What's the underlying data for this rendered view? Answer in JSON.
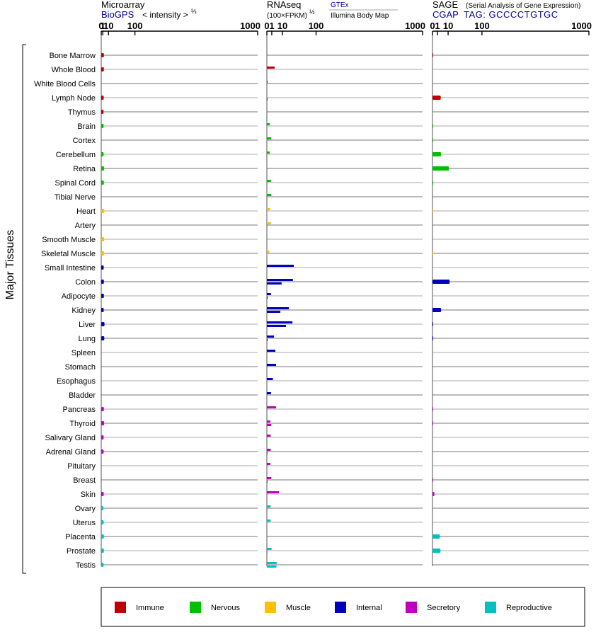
{
  "chart_data": {
    "type": "bar",
    "y_axis_title": "Major Tissues",
    "scale": {
      "ticks": [
        0,
        1,
        10,
        100,
        1000
      ],
      "tick_labels": [
        "0",
        "1",
        "10",
        "100",
        "1000"
      ],
      "range": [
        0,
        1000
      ]
    },
    "panels": [
      {
        "id": "microarray",
        "title": "Microarray",
        "source": "BioGPS",
        "unit": "< intensity >",
        "unit_exponent": "⅔"
      },
      {
        "id": "rnaseq",
        "title": "RNAseq",
        "unit": "(100×FPKM)",
        "unit_exponent": "½",
        "legend_primary": "GTEx",
        "legend_secondary": "Illumina Body Map"
      },
      {
        "id": "sage",
        "title": "SAGE",
        "title_note": "(Serial Analysis of Gene Expression)",
        "source": "CGAP",
        "tag": "TAG: GCCCCTGTGC"
      }
    ],
    "categories": [
      {
        "name": "Immune",
        "color": "#c00000"
      },
      {
        "name": "Nervous",
        "color": "#00c000"
      },
      {
        "name": "Muscle",
        "color": "#ffc000"
      },
      {
        "name": "Internal",
        "color": "#0000c0"
      },
      {
        "name": "Secretory",
        "color": "#c000c0"
      },
      {
        "name": "Reproductive",
        "color": "#00c0c0"
      }
    ],
    "tissues": [
      {
        "name": "Bone Marrow",
        "cat": 0,
        "microarray": 2.2,
        "gtex": null,
        "ibm": null,
        "sage": 0.02
      },
      {
        "name": "Whole Blood",
        "cat": 0,
        "microarray": 2.2,
        "gtex": 2.5,
        "ibm": null,
        "sage": null
      },
      {
        "name": "White Blood Cells",
        "cat": 0,
        "microarray": null,
        "gtex": 0.01,
        "ibm": null,
        "sage": null
      },
      {
        "name": "Lymph Node",
        "cat": 0,
        "microarray": 2.0,
        "gtex": null,
        "ibm": 0.01,
        "sage": 2.8
      },
      {
        "name": "Thymus",
        "cat": 0,
        "microarray": 1.8,
        "gtex": null,
        "ibm": null,
        "sage": null
      },
      {
        "name": "Brain",
        "cat": 1,
        "microarray": 1.9,
        "gtex": 0.35,
        "ibm": null,
        "sage": 0.01
      },
      {
        "name": "Cortex",
        "cat": 1,
        "microarray": null,
        "gtex": 0.8,
        "ibm": null,
        "sage": 0.01
      },
      {
        "name": "Cerebellum",
        "cat": 1,
        "microarray": 1.9,
        "gtex": 0.35,
        "ibm": null,
        "sage": 3.0
      },
      {
        "name": "Retina",
        "cat": 1,
        "microarray": 2.5,
        "gtex": null,
        "ibm": null,
        "sage": 11.0
      },
      {
        "name": "Spinal Cord",
        "cat": 1,
        "microarray": 2.2,
        "gtex": 0.7,
        "ibm": null,
        "sage": 0.01
      },
      {
        "name": "Tibial Nerve",
        "cat": 1,
        "microarray": null,
        "gtex": 0.8,
        "ibm": null,
        "sage": null
      },
      {
        "name": "Heart",
        "cat": 2,
        "microarray": 2.7,
        "gtex": 0.45,
        "ibm": 0.01,
        "sage": 0.01
      },
      {
        "name": "Artery",
        "cat": 2,
        "microarray": null,
        "gtex": 0.7,
        "ibm": null,
        "sage": null
      },
      {
        "name": "Smooth Muscle",
        "cat": 2,
        "microarray": 2.5,
        "gtex": null,
        "ibm": null,
        "sage": null
      },
      {
        "name": "Skeletal Muscle",
        "cat": 2,
        "microarray": 2.5,
        "gtex": 0.25,
        "ibm": 0.01,
        "sage": 0.01
      },
      {
        "name": "Small Intestine",
        "cat": 3,
        "microarray": 2.0,
        "gtex": 30.0,
        "ibm": null,
        "sage": null
      },
      {
        "name": "Colon",
        "cat": 3,
        "microarray": 2.2,
        "gtex": 28.0,
        "ibm": 9.0,
        "sage": 12.0
      },
      {
        "name": "Adipocyte",
        "cat": 3,
        "microarray": 2.2,
        "gtex": 0.7,
        "ibm": 0.01,
        "sage": null
      },
      {
        "name": "Kidney",
        "cat": 3,
        "microarray": 2.0,
        "gtex": 20.0,
        "ibm": 7.5,
        "sage": 3.0
      },
      {
        "name": "Liver",
        "cat": 3,
        "microarray": 3.0,
        "gtex": 27.0,
        "ibm": 15.0,
        "sage": 0.02
      },
      {
        "name": "Lung",
        "cat": 3,
        "microarray": 2.7,
        "gtex": 2.1,
        "ibm": 0.01,
        "sage": 0.02
      },
      {
        "name": "Spleen",
        "cat": 3,
        "microarray": null,
        "gtex": 3.0,
        "ibm": null,
        "sage": null
      },
      {
        "name": "Stomach",
        "cat": 3,
        "microarray": null,
        "gtex": 3.5,
        "ibm": null,
        "sage": null
      },
      {
        "name": "Esophagus",
        "cat": 3,
        "microarray": null,
        "gtex": 1.5,
        "ibm": null,
        "sage": null
      },
      {
        "name": "Bladder",
        "cat": 3,
        "microarray": null,
        "gtex": 0.7,
        "ibm": null,
        "sage": null
      },
      {
        "name": "Pancreas",
        "cat": 4,
        "microarray": 2.2,
        "gtex": 3.5,
        "ibm": null,
        "sage": 0.02
      },
      {
        "name": "Thyroid",
        "cat": 4,
        "microarray": 2.5,
        "gtex": 0.5,
        "ibm": 0.8,
        "sage": 0.02
      },
      {
        "name": "Salivary Gland",
        "cat": 4,
        "microarray": 1.9,
        "gtex": 0.6,
        "ibm": null,
        "sage": null
      },
      {
        "name": "Adrenal Gland",
        "cat": 4,
        "microarray": 1.9,
        "gtex": 0.6,
        "ibm": 0.01,
        "sage": null
      },
      {
        "name": "Pituitary",
        "cat": 4,
        "microarray": null,
        "gtex": 0.5,
        "ibm": null,
        "sage": null
      },
      {
        "name": "Breast",
        "cat": 4,
        "microarray": null,
        "gtex": 0.8,
        "ibm": 0.01,
        "sage": 0.02
      },
      {
        "name": "Skin",
        "cat": 4,
        "microarray": 2.0,
        "gtex": 6.0,
        "ibm": null,
        "sage": 0.15
      },
      {
        "name": "Ovary",
        "cat": 5,
        "microarray": 1.6,
        "gtex": 0.6,
        "ibm": 0.01,
        "sage": null
      },
      {
        "name": "Uterus",
        "cat": 5,
        "microarray": 1.9,
        "gtex": 0.6,
        "ibm": null,
        "sage": null
      },
      {
        "name": "Placenta",
        "cat": 5,
        "microarray": 2.2,
        "gtex": null,
        "ibm": null,
        "sage": 2.2
      },
      {
        "name": "Prostate",
        "cat": 5,
        "microarray": 2.2,
        "gtex": 0.9,
        "ibm": 0.01,
        "sage": 2.6
      },
      {
        "name": "Testis",
        "cat": 5,
        "microarray": 1.9,
        "gtex": 4.0,
        "ibm": 3.8,
        "sage": null
      }
    ]
  }
}
